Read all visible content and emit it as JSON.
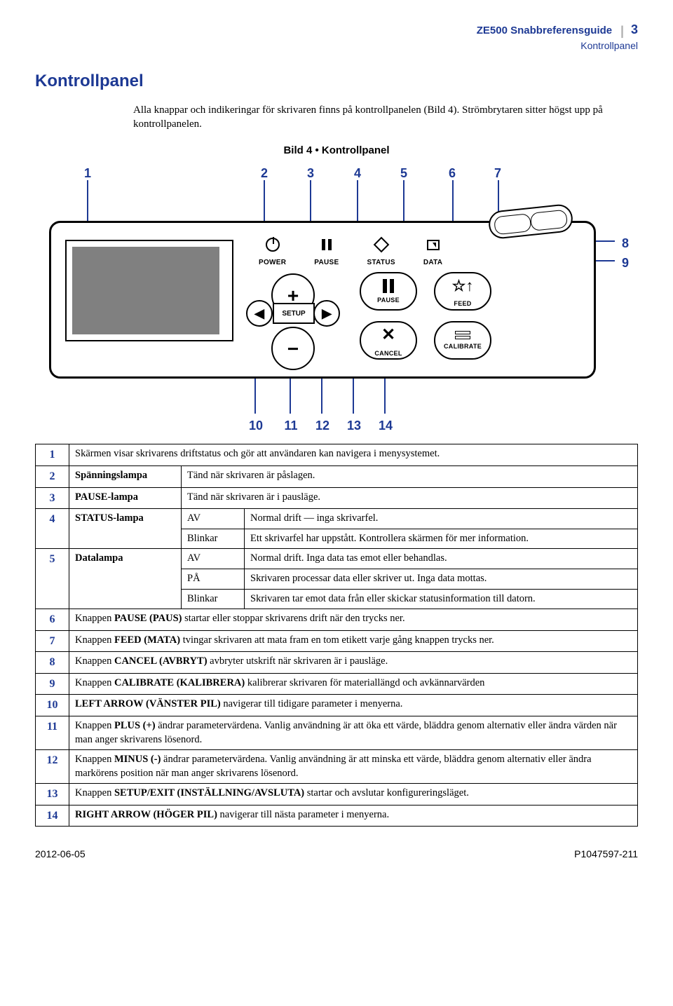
{
  "header": {
    "title": "ZE500 Snabbreferensguide",
    "subtitle": "Kontrollpanel",
    "page_num": "3"
  },
  "section_title": "Kontrollpanel",
  "intro": "Alla knappar och indikeringar för skrivaren finns på kontrollpanelen (Bild 4). Strömbrytaren sitter högst upp på kontrollpanelen.",
  "figure_caption": "Bild 4 • Kontrollpanel",
  "callouts": {
    "top": [
      "1",
      "2",
      "3",
      "4",
      "5",
      "6",
      "7"
    ],
    "right": [
      "8",
      "9"
    ],
    "bottom": [
      "10",
      "11",
      "12",
      "13",
      "14"
    ]
  },
  "panel": {
    "led_labels": {
      "power": "POWER",
      "pause": "PAUSE",
      "status": "STATUS",
      "data": "DATA"
    },
    "setup_label": "SETUP",
    "buttons": {
      "pause": "PAUSE",
      "feed": "FEED",
      "cancel": "CANCEL",
      "calibrate": "CALIBRATE"
    }
  },
  "table_rows": [
    {
      "num": "1",
      "span": "full",
      "text": "Skärmen visar skrivarens driftstatus och gör att användaren kan navigera i menysystemet."
    },
    {
      "num": "2",
      "label": "Spänningslampa",
      "desc": "Tänd när skrivaren är påslagen."
    },
    {
      "num": "3",
      "label": "PAUSE-lampa",
      "desc": "Tänd när skrivaren är i pausläge."
    },
    {
      "num": "4",
      "label": "STATUS-lampa",
      "state": "AV",
      "desc": "Normal drift — inga skrivarfel."
    },
    {
      "cont": true,
      "state": "Blinkar",
      "desc": "Ett skrivarfel har uppstått. Kontrollera skärmen för mer information."
    },
    {
      "num": "5",
      "label": "Datalampa",
      "state": "AV",
      "desc": "Normal drift. Inga data tas emot eller behandlas."
    },
    {
      "cont": true,
      "state": "PÅ",
      "desc": "Skrivaren processar data eller skriver ut. Inga data mottas."
    },
    {
      "cont": true,
      "state": "Blinkar",
      "desc": "Skrivaren tar emot data från eller skickar statusinformation till datorn."
    },
    {
      "num": "6",
      "span": "full",
      "html": "Knappen <b>PAUSE (PAUS)</b> startar eller stoppar skrivarens drift när den trycks ner."
    },
    {
      "num": "7",
      "span": "full",
      "html": "Knappen <b>FEED (MATA)</b> tvingar skrivaren att mata fram en tom etikett varje gång knappen trycks ner."
    },
    {
      "num": "8",
      "span": "full",
      "html": "Knappen <b>CANCEL (AVBRYT)</b> avbryter utskrift när skrivaren är i pausläge."
    },
    {
      "num": "9",
      "span": "full",
      "html": "Knappen <b>CALIBRATE (KALIBRERA)</b> kalibrerar skrivaren för materiallängd och avkännarvärden"
    },
    {
      "num": "10",
      "span": "full",
      "html": "<b>LEFT ARROW (VÄNSTER PIL)</b> navigerar till tidigare parameter i menyerna."
    },
    {
      "num": "11",
      "span": "full",
      "html": "Knappen <b>PLUS (+)</b> ändrar parametervärdena. Vanlig användning är att öka ett värde, bläddra genom alternativ eller ändra värden när man anger skrivarens lösenord."
    },
    {
      "num": "12",
      "span": "full",
      "html": "Knappen <b>MINUS (-)</b> ändrar parametervärdena. Vanlig användning är att minska ett värde, bläddra genom alternativ eller ändra markörens position när man anger skrivarens lösenord."
    },
    {
      "num": "13",
      "span": "full",
      "html": "Knappen <b>SETUP/EXIT (INSTÄLLNING/AVSLUTA)</b> startar och avslutar konfigureringsläget."
    },
    {
      "num": "14",
      "span": "full",
      "html": "<b>RIGHT ARROW (HÖGER PIL)</b> navigerar till nästa parameter i menyerna."
    }
  ],
  "footer": {
    "date": "2012-06-05",
    "doc": "P1047597-211"
  },
  "colors": {
    "accent": "#1d3994"
  }
}
